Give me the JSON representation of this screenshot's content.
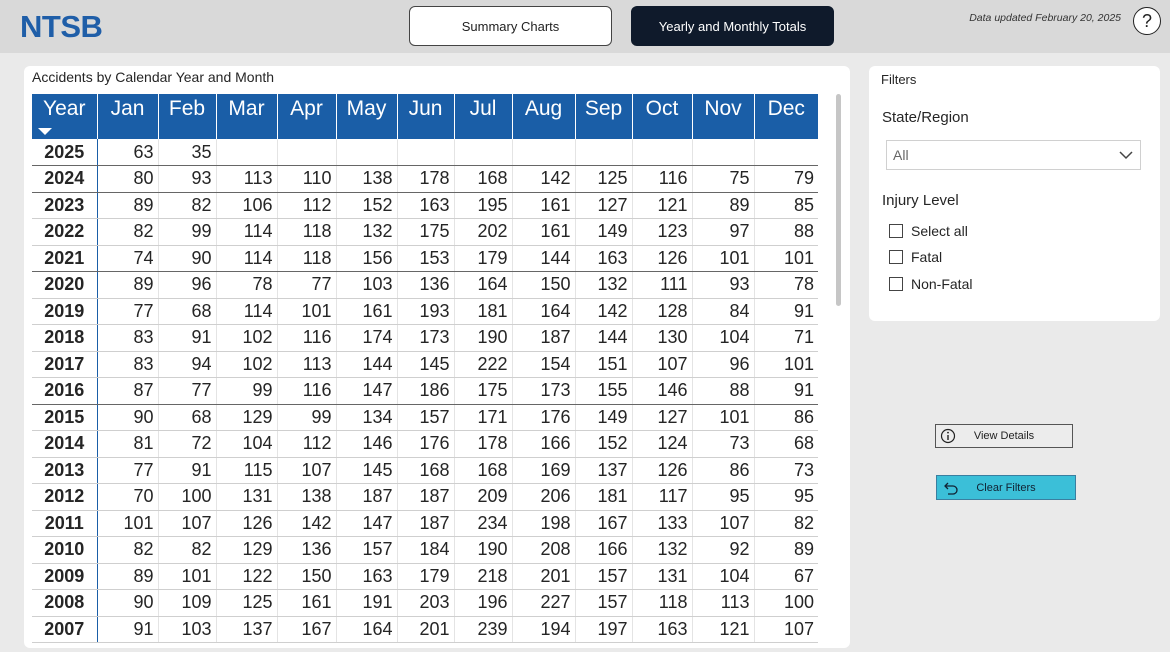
{
  "header": {
    "logo": "NTSB",
    "nav": {
      "summary_label": "Summary Charts",
      "yearly_label": "Yearly and Monthly Totals"
    },
    "updated_text": "Data updated February 20, 2025",
    "help_label": "?"
  },
  "matrix": {
    "title": "Accidents by Calendar Year and Month",
    "columns": [
      "Year",
      "Jan",
      "Feb",
      "Mar",
      "Apr",
      "May",
      "Jun",
      "Jul",
      "Aug",
      "Sep",
      "Oct",
      "Nov",
      "Dec"
    ],
    "sort": "Year descending",
    "rows": [
      {
        "year": "2025",
        "values": [
          "63",
          "35",
          "",
          "",
          "",
          "",
          "",
          "",
          "",
          "",
          "",
          ""
        ]
      },
      {
        "year": "2024",
        "values": [
          "80",
          "93",
          "113",
          "110",
          "138",
          "178",
          "168",
          "142",
          "125",
          "116",
          "75",
          "79"
        ]
      },
      {
        "year": "2023",
        "values": [
          "89",
          "82",
          "106",
          "112",
          "152",
          "163",
          "195",
          "161",
          "127",
          "121",
          "89",
          "85"
        ]
      },
      {
        "year": "2022",
        "values": [
          "82",
          "99",
          "114",
          "118",
          "132",
          "175",
          "202",
          "161",
          "149",
          "123",
          "97",
          "88"
        ]
      },
      {
        "year": "2021",
        "values": [
          "74",
          "90",
          "114",
          "118",
          "156",
          "153",
          "179",
          "144",
          "163",
          "126",
          "101",
          "101"
        ]
      },
      {
        "year": "2020",
        "values": [
          "89",
          "96",
          "78",
          "77",
          "103",
          "136",
          "164",
          "150",
          "132",
          "111",
          "93",
          "78"
        ]
      },
      {
        "year": "2019",
        "values": [
          "77",
          "68",
          "114",
          "101",
          "161",
          "193",
          "181",
          "164",
          "142",
          "128",
          "84",
          "91"
        ]
      },
      {
        "year": "2018",
        "values": [
          "83",
          "91",
          "102",
          "116",
          "174",
          "173",
          "190",
          "187",
          "144",
          "130",
          "104",
          "71"
        ]
      },
      {
        "year": "2017",
        "values": [
          "83",
          "94",
          "102",
          "113",
          "144",
          "145",
          "222",
          "154",
          "151",
          "107",
          "96",
          "101"
        ]
      },
      {
        "year": "2016",
        "values": [
          "87",
          "77",
          "99",
          "116",
          "147",
          "186",
          "175",
          "173",
          "155",
          "146",
          "88",
          "91"
        ]
      },
      {
        "year": "2015",
        "values": [
          "90",
          "68",
          "129",
          "99",
          "134",
          "157",
          "171",
          "176",
          "149",
          "127",
          "101",
          "86"
        ]
      },
      {
        "year": "2014",
        "values": [
          "81",
          "72",
          "104",
          "112",
          "146",
          "176",
          "178",
          "166",
          "152",
          "124",
          "73",
          "68"
        ]
      },
      {
        "year": "2013",
        "values": [
          "77",
          "91",
          "115",
          "107",
          "145",
          "168",
          "168",
          "169",
          "137",
          "126",
          "86",
          "73"
        ]
      },
      {
        "year": "2012",
        "values": [
          "70",
          "100",
          "131",
          "138",
          "187",
          "187",
          "209",
          "206",
          "181",
          "117",
          "95",
          "95"
        ]
      },
      {
        "year": "2011",
        "values": [
          "101",
          "107",
          "126",
          "142",
          "147",
          "187",
          "234",
          "198",
          "167",
          "133",
          "107",
          "82"
        ]
      },
      {
        "year": "2010",
        "values": [
          "82",
          "82",
          "129",
          "136",
          "157",
          "184",
          "190",
          "208",
          "166",
          "132",
          "92",
          "89"
        ]
      },
      {
        "year": "2009",
        "values": [
          "89",
          "101",
          "122",
          "150",
          "163",
          "179",
          "218",
          "201",
          "157",
          "131",
          "104",
          "67"
        ]
      },
      {
        "year": "2008",
        "values": [
          "90",
          "109",
          "125",
          "161",
          "191",
          "203",
          "196",
          "227",
          "157",
          "118",
          "113",
          "100"
        ]
      },
      {
        "year": "2007",
        "values": [
          "91",
          "103",
          "137",
          "167",
          "164",
          "201",
          "239",
          "194",
          "197",
          "163",
          "121",
          "107"
        ]
      }
    ]
  },
  "filters": {
    "title": "Filters",
    "state_label": "State/Region",
    "state_value": "All",
    "injury_label": "Injury Level",
    "options": [
      {
        "label": "Select all",
        "checked": false
      },
      {
        "label": "Fatal",
        "checked": false
      },
      {
        "label": "Non-Fatal",
        "checked": false
      }
    ]
  },
  "buttons": {
    "view_details": "View Details",
    "clear_filters": "Clear Filters"
  },
  "colors": {
    "header_blue": "#1a5ea7",
    "nav_active": "#0f1a2b",
    "clear_button": "#3bbfd8",
    "logo": "#1f5ea8"
  },
  "icons": {
    "help": "question-circle-icon",
    "dropdown": "chevron-down-icon",
    "info": "info-icon",
    "undo": "undo-arrow-icon",
    "sort": "sort-descending-icon"
  }
}
